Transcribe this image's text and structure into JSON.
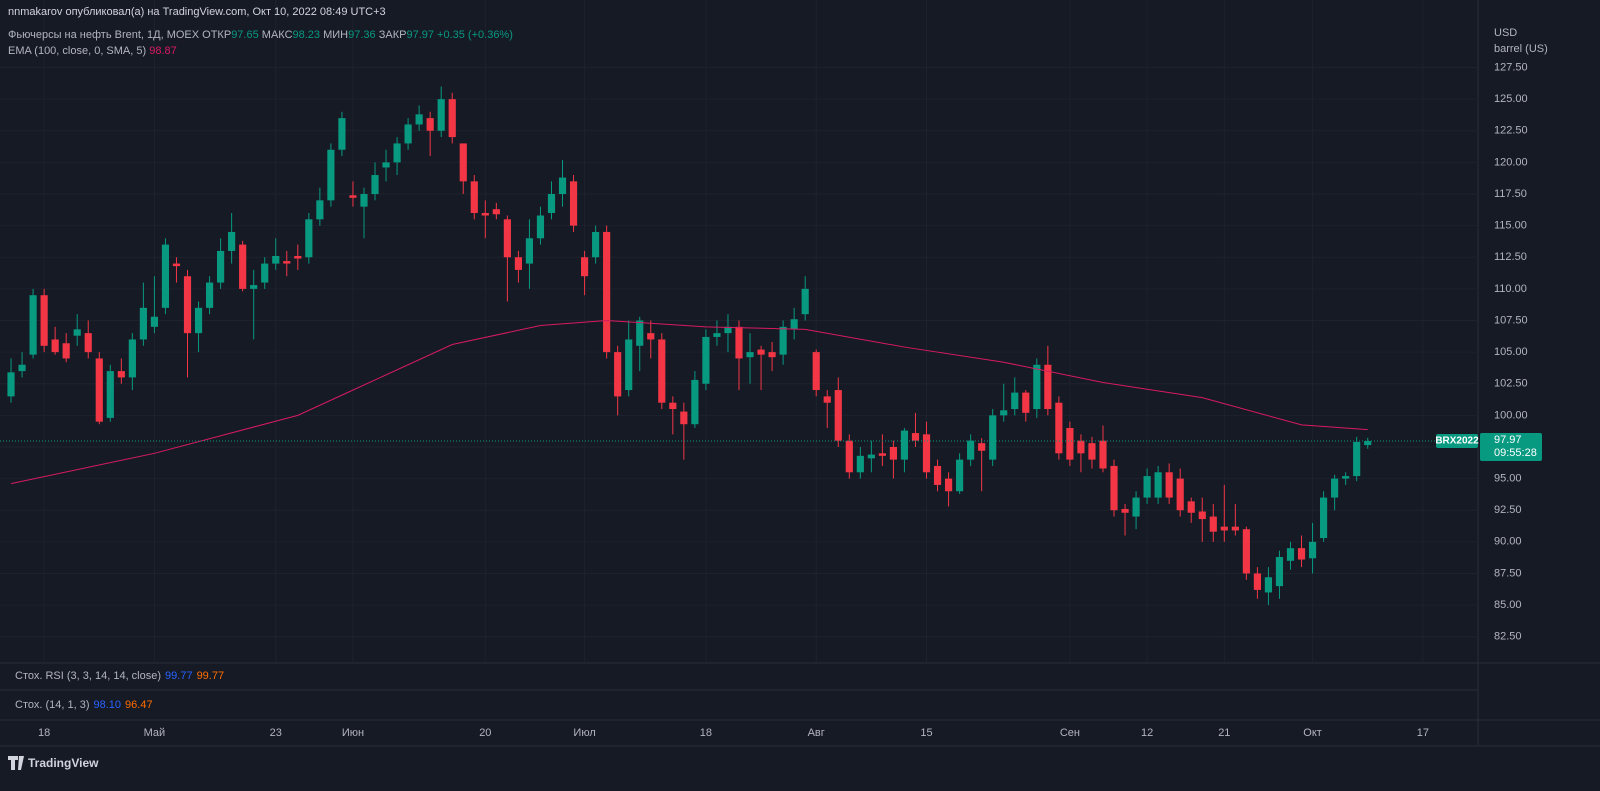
{
  "header": {
    "publisher": "nnmakarov опубликовал(а) на TradingView.com, Окт 10, 2022 08:49 UTC+3"
  },
  "chart_data": {
    "type": "candlestick",
    "title": "Фьючерсы на нефть Brent, 1Д, MOEX",
    "field_labels": {
      "open": "ОТКР",
      "high": "МАКС",
      "low": "МИН",
      "close": "ЗАКР"
    },
    "change": "+0.35 (+0.36%)",
    "currency": "USD",
    "unit": "barrel (US)",
    "symbol": "BRX2022",
    "countdown": "09:55:28",
    "up_color": "#089981",
    "down_color": "#f23645",
    "grid": true,
    "open": [
      101.5,
      103.5,
      104.8,
      109.5,
      106,
      105.7,
      106.3,
      106.5,
      104.5,
      99.8,
      103.5,
      103,
      106,
      107,
      108.5,
      112,
      111,
      106.5,
      108.5,
      110.5,
      113,
      113.5,
      110,
      110.5,
      112,
      112.2,
      112.6,
      112.5,
      115.5,
      117,
      121,
      117.4,
      116.5,
      117.5,
      119.6,
      120,
      121.5,
      123,
      123.5,
      122.5,
      125,
      121.5,
      118.5,
      116,
      116.3,
      115.5,
      112.5,
      112,
      114,
      116,
      117.5,
      118.5,
      112.5,
      112.5,
      114.5,
      105,
      102,
      105.5,
      106.5,
      106,
      101,
      100.3,
      99.3,
      102.5,
      106.2,
      106.5,
      107,
      104.6,
      105.2,
      105,
      104.8,
      106.8,
      108,
      105,
      101.5,
      102,
      98,
      95.5,
      96.6,
      97,
      97.5,
      96.5,
      98.6,
      98.5,
      96,
      95,
      94,
      96.5,
      97.8,
      96.5,
      100,
      100.5,
      101.8,
      100.5,
      104,
      101,
      99,
      98,
      97.8,
      98,
      96,
      92.6,
      92,
      93.5,
      93.5,
      95.5,
      95,
      93.2,
      92.4,
      92,
      91.2,
      91.2,
      91,
      87.5,
      86,
      86.5,
      88.5,
      89.5,
      88.7,
      90.3,
      93.5,
      95,
      95.2,
      97.65
    ],
    "high": [
      104.5,
      105,
      110,
      110,
      107,
      106.5,
      108,
      107.5,
      105,
      104,
      104.5,
      106.5,
      110.5,
      111,
      114,
      112.5,
      111.5,
      109,
      111,
      114,
      116,
      113.8,
      111.5,
      112.5,
      114,
      113,
      113.5,
      116,
      118,
      121.5,
      124,
      118.5,
      118,
      120,
      121,
      122,
      123.5,
      124.5,
      124,
      126,
      125.5,
      121.5,
      119,
      117,
      116.8,
      115.8,
      113,
      115.5,
      116.5,
      118.5,
      120.2,
      119,
      113,
      115,
      115,
      105.5,
      107.5,
      107.8,
      107.5,
      106.5,
      101.5,
      101,
      103.5,
      106.8,
      107.5,
      108,
      107.5,
      106.5,
      105.5,
      105.8,
      107.5,
      108.5,
      111,
      105.2,
      102,
      103,
      98.5,
      97.5,
      98,
      98.5,
      98,
      99,
      100.2,
      99.5,
      96.5,
      95.5,
      97,
      98.5,
      98.2,
      100.5,
      102.5,
      103,
      102,
      104.5,
      105.5,
      101.5,
      99.5,
      98.5,
      98.3,
      99.2,
      96.5,
      93,
      94,
      95.8,
      96,
      96.2,
      95.8,
      93.5,
      93.5,
      93,
      94.5,
      93,
      91.2,
      88,
      88,
      89.3,
      90,
      90.5,
      91.5,
      94,
      95.3,
      95.5,
      98.3,
      98.23
    ],
    "low": [
      101,
      103,
      104.5,
      105,
      104.8,
      104.2,
      105.5,
      104.5,
      99.3,
      99.5,
      102.5,
      102,
      105.5,
      106.5,
      108,
      110.5,
      103,
      105,
      108,
      110,
      112,
      109.8,
      106,
      110,
      111.5,
      111,
      111.5,
      112,
      115,
      116.5,
      120.5,
      116.5,
      114,
      117,
      118.5,
      119,
      121,
      122.5,
      120.5,
      122,
      121.5,
      117.5,
      115.5,
      114,
      115.5,
      109,
      110.5,
      110,
      113.5,
      115.5,
      116.5,
      114.5,
      109.5,
      112,
      104.5,
      100,
      101.5,
      103.5,
      104.5,
      100.5,
      98.5,
      96.5,
      99,
      102,
      105.5,
      105,
      102,
      102.5,
      102,
      103.5,
      104,
      106,
      107.5,
      101.5,
      99,
      97.5,
      95,
      95,
      95.5,
      96,
      95,
      95.5,
      97.5,
      95,
      94,
      92.8,
      93.8,
      96,
      94,
      96,
      99.5,
      100,
      99.5,
      99.8,
      100,
      96.5,
      96,
      95.5,
      95.8,
      95.5,
      92,
      90.5,
      91,
      93,
      93,
      93,
      92,
      91.5,
      90,
      90,
      90,
      90.5,
      87,
      85.5,
      85,
      85.5,
      87.8,
      88,
      87.5,
      90,
      92.5,
      94.5,
      94.8,
      97.36
    ],
    "close": [
      103.4,
      104,
      109.5,
      105.5,
      105,
      104.5,
      106.8,
      105,
      99.5,
      103.5,
      103,
      106,
      108.5,
      107.8,
      113.5,
      111.8,
      106.5,
      108.5,
      110.5,
      113,
      114.5,
      110,
      110.3,
      112,
      112.6,
      112,
      112.4,
      115.5,
      117,
      121,
      123.5,
      117.2,
      117.5,
      119,
      120,
      121.5,
      123,
      123.8,
      122.5,
      125,
      122,
      118.5,
      116,
      115.8,
      115.9,
      112.5,
      111.5,
      114,
      115.8,
      117.5,
      118.8,
      115,
      111,
      114.5,
      105,
      101.5,
      106,
      107.5,
      106,
      101,
      100.5,
      99.3,
      102.8,
      106.2,
      106.5,
      107,
      104.5,
      105,
      104.8,
      104.6,
      107,
      107.6,
      110,
      102,
      101,
      98,
      95.5,
      96.8,
      96.9,
      96.8,
      96.5,
      98.8,
      98,
      95.5,
      94.5,
      94,
      96.5,
      98,
      97.2,
      100,
      100.4,
      101.8,
      100.2,
      104,
      100.5,
      97,
      96.5,
      97,
      96.5,
      95.8,
      92.5,
      92.3,
      93.5,
      95.2,
      95.5,
      93.5,
      92.5,
      92.3,
      91.8,
      90.8,
      90.9,
      90.9,
      87.5,
      86.2,
      87.2,
      88.8,
      89.5,
      88.6,
      90,
      93.5,
      95,
      95.2,
      97.9,
      97.97
    ],
    "ema": {
      "name": "EMA (100, close, 0, SMA, 5)",
      "color": "#d81b60",
      "x": [
        0,
        13,
        26,
        30,
        40,
        48,
        54,
        63,
        72,
        81,
        90,
        99,
        108,
        117,
        123
      ],
      "values": [
        94.6,
        97,
        100,
        101.6,
        105.6,
        107.1,
        107.5,
        107,
        106.8,
        105.4,
        104.2,
        102.6,
        101.4,
        99.25,
        98.87
      ]
    },
    "xlim": [
      -1,
      133
    ],
    "xticks": [
      {
        "value": 3,
        "label": "18"
      },
      {
        "value": 13,
        "label": "Май"
      },
      {
        "value": 24,
        "label": "23"
      },
      {
        "value": 31,
        "label": "Июн"
      },
      {
        "value": 43,
        "label": "20"
      },
      {
        "value": 52,
        "label": "Июл"
      },
      {
        "value": 63,
        "label": "18"
      },
      {
        "value": 73,
        "label": "Авг"
      },
      {
        "value": 83,
        "label": "15"
      },
      {
        "value": 96,
        "label": "Сен"
      },
      {
        "value": 103,
        "label": "12"
      },
      {
        "value": 110,
        "label": "21"
      },
      {
        "value": 118,
        "label": "Окт"
      },
      {
        "value": 128,
        "label": "17"
      }
    ],
    "ylim": [
      80.5,
      131.1
    ],
    "yticks": [
      {
        "value": 82.5,
        "label": "82.50"
      },
      {
        "value": 85,
        "label": "85.00"
      },
      {
        "value": 87.5,
        "label": "87.50"
      },
      {
        "value": 90,
        "label": "90.00"
      },
      {
        "value": 92.5,
        "label": "92.50"
      },
      {
        "value": 95,
        "label": "95.00"
      },
      {
        "value": 97.5,
        "label": "97.50"
      },
      {
        "value": 100,
        "label": "100.00"
      },
      {
        "value": 102.5,
        "label": "102.50"
      },
      {
        "value": 105,
        "label": "105.00"
      },
      {
        "value": 107.5,
        "label": "107.50"
      },
      {
        "value": 110,
        "label": "110.00"
      },
      {
        "value": 112.5,
        "label": "112.50"
      },
      {
        "value": 115,
        "label": "115.00"
      },
      {
        "value": 117.5,
        "label": "117.50"
      },
      {
        "value": 120,
        "label": "120.00"
      },
      {
        "value": 122.5,
        "label": "122.50"
      },
      {
        "value": 125,
        "label": "125.00"
      },
      {
        "value": 127.5,
        "label": "127.50"
      }
    ]
  },
  "indicators": [
    {
      "name": "Стох. RSI (3, 3, 14, 14, close)",
      "values": [
        99.77,
        99.77
      ],
      "colors": [
        "#2962ff",
        "#ff6d00"
      ]
    },
    {
      "name": "Стох. (14, 1, 3)",
      "values": [
        98.1,
        96.47
      ],
      "value_labels": [
        "98.10",
        "96.47"
      ],
      "colors": [
        "#2962ff",
        "#ff6d00"
      ]
    }
  ],
  "footer": {
    "brand": "TradingView"
  }
}
